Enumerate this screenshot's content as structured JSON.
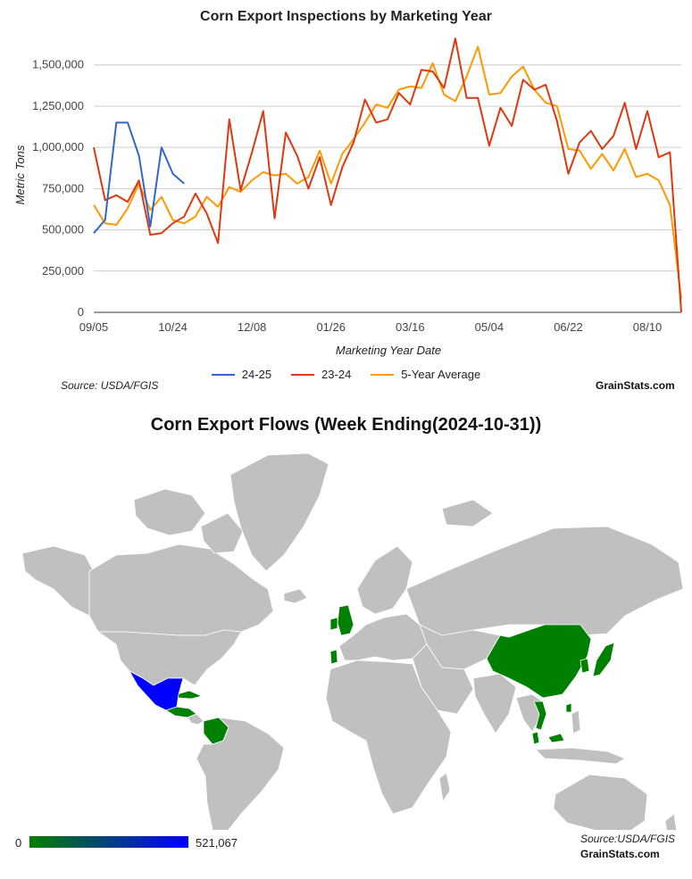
{
  "line_chart": {
    "title": "Corn Export Inspections by Marketing Year",
    "source": "Source: USDA/FGIS",
    "brand": "GrainStats.com"
  },
  "map": {
    "title": "Corn Export Flows (Week Ending(2024-10-31))",
    "source": "Source:USDA/FGIS",
    "brand": "GrainStats.com",
    "scale_min": "0",
    "scale_max": "521,067",
    "scale_colors": [
      "#008000",
      "#0000ff"
    ],
    "land_color": "#c0c0c0",
    "highlighted_countries": [
      {
        "name": "Mexico",
        "color": "#0000ff"
      },
      {
        "name": "Colombia",
        "color": "#008000"
      },
      {
        "name": "Guatemala",
        "color": "#008000"
      },
      {
        "name": "Honduras",
        "color": "#008000"
      },
      {
        "name": "Costa Rica",
        "color": "#008000"
      },
      {
        "name": "Cuba",
        "color": "#008000"
      },
      {
        "name": "United Kingdom",
        "color": "#008000"
      },
      {
        "name": "Ireland",
        "color": "#008000"
      },
      {
        "name": "Portugal",
        "color": "#008000"
      },
      {
        "name": "China",
        "color": "#008000"
      },
      {
        "name": "Japan",
        "color": "#008000"
      },
      {
        "name": "South Korea",
        "color": "#008000"
      },
      {
        "name": "Taiwan",
        "color": "#008000"
      },
      {
        "name": "Vietnam",
        "color": "#008000"
      },
      {
        "name": "Malaysia",
        "color": "#008000"
      }
    ]
  },
  "chart_data": {
    "type": "line",
    "title": "Corn Export Inspections by Marketing Year",
    "xlabel": "Marketing Year Date",
    "ylabel": "Metric Tons",
    "x_ticks": [
      "09/05",
      "10/24",
      "12/08",
      "01/26",
      "03/16",
      "05/04",
      "06/22",
      "08/10"
    ],
    "x_tick_week_index": [
      0,
      7,
      14,
      21,
      28,
      35,
      42,
      49
    ],
    "ylim": [
      0,
      1650000
    ],
    "y_ticks": [
      0,
      250000,
      500000,
      750000,
      1000000,
      1250000,
      1500000
    ],
    "y_tick_labels": [
      "0",
      "250,000",
      "500,000",
      "750,000",
      "1,000,000",
      "1,250,000",
      "1,500,000"
    ],
    "grid": "horizontal",
    "legend_position": "bottom",
    "series": [
      {
        "name": "24-25",
        "color": "#3366cc",
        "values": [
          480000,
          560000,
          1150000,
          1150000,
          950000,
          520000,
          1000000,
          840000,
          780000
        ]
      },
      {
        "name": "23-24",
        "color": "#dc3912",
        "values": [
          1000000,
          680000,
          710000,
          670000,
          800000,
          470000,
          480000,
          540000,
          580000,
          720000,
          600000,
          420000,
          1170000,
          740000,
          970000,
          1220000,
          570000,
          1090000,
          950000,
          750000,
          940000,
          650000,
          880000,
          1030000,
          1290000,
          1150000,
          1170000,
          1330000,
          1260000,
          1470000,
          1460000,
          1360000,
          1660000,
          1300000,
          1300000,
          1010000,
          1240000,
          1130000,
          1410000,
          1350000,
          1380000,
          1160000,
          840000,
          1030000,
          1100000,
          990000,
          1070000,
          1270000,
          990000,
          1220000,
          940000,
          970000,
          0
        ]
      },
      {
        "name": "5-Year Average",
        "color": "#ff9900",
        "values": [
          650000,
          540000,
          530000,
          630000,
          780000,
          620000,
          700000,
          560000,
          540000,
          580000,
          700000,
          640000,
          760000,
          730000,
          800000,
          850000,
          830000,
          840000,
          780000,
          820000,
          980000,
          780000,
          960000,
          1050000,
          1150000,
          1260000,
          1240000,
          1350000,
          1370000,
          1360000,
          1510000,
          1320000,
          1280000,
          1430000,
          1610000,
          1320000,
          1330000,
          1430000,
          1490000,
          1350000,
          1270000,
          1250000,
          990000,
          980000,
          870000,
          960000,
          860000,
          990000,
          820000,
          840000,
          800000,
          650000,
          80000
        ]
      }
    ]
  }
}
